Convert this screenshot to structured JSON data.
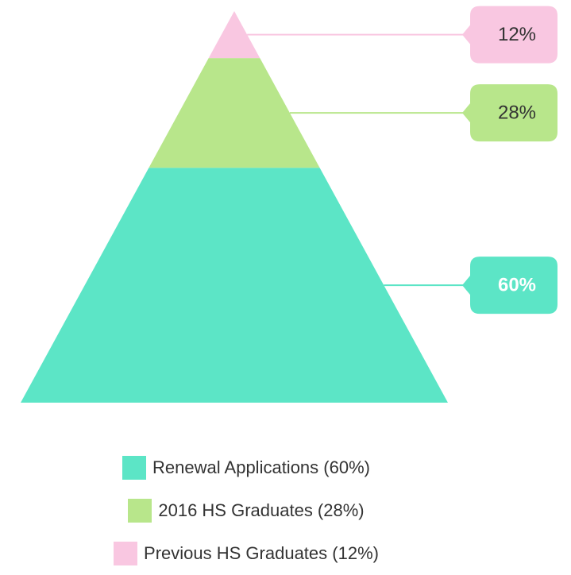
{
  "chart_data": {
    "type": "pyramid",
    "categories": [
      "Renewal Applications (60%)",
      "2016 HS Graduates (28%)",
      "Previous HS Graduates (12%)"
    ],
    "values": [
      60,
      28,
      12
    ],
    "value_labels": [
      "60%",
      "28%",
      "12%"
    ],
    "colors": [
      "#5ce5c6",
      "#b8e68b",
      "#f9c7e1"
    ],
    "label_text_colors": [
      "#ffffff",
      "#333333",
      "#333333"
    ]
  }
}
